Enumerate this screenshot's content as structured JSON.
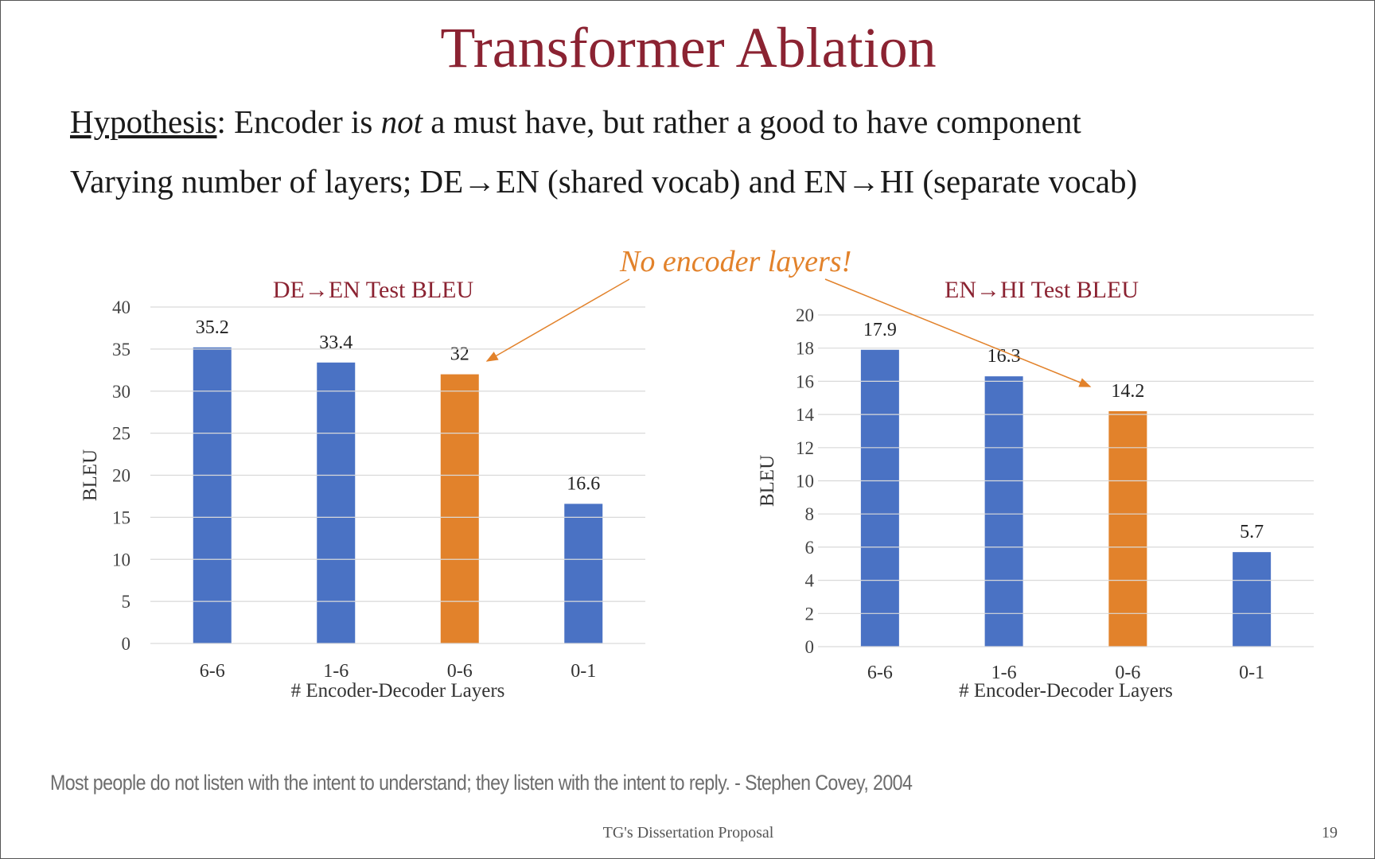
{
  "slide": {
    "title": "Transformer Ablation",
    "hypothesis_label": "Hypothesis",
    "hypothesis_text_a": ": Encoder is ",
    "hypothesis_not": "not",
    "hypothesis_text_b": " a must have, but rather a good to have component",
    "line2_a": "Varying number of  layers;  DE",
    "line2_b": "EN (shared vocab) and EN",
    "line2_c": "HI (separate vocab)",
    "callout": "No encoder layers!",
    "quote": "Most people do not listen with the intent to understand; they listen with the intent to reply. - Stephen Covey, 2004",
    "footer": "TG's Dissertation Proposal",
    "page_number": "19"
  },
  "colors": {
    "title": "#8b2332",
    "bar_default": "#4a72c4",
    "bar_highlight": "#e2822b",
    "callout": "#e2822b",
    "grid": "#d9d9d9"
  },
  "chart_data": [
    {
      "type": "bar",
      "title": "DE→EN Test BLEU",
      "xlabel": "# Encoder-Decoder Layers",
      "ylabel": "BLEU",
      "categories": [
        "6-6",
        "1-6",
        "0-6",
        "0-1"
      ],
      "values": [
        35.2,
        33.4,
        32,
        16.6
      ],
      "data_labels": [
        "35.2",
        "33.4",
        "32",
        "16.6"
      ],
      "highlight_index": 2,
      "ylim": [
        0,
        40
      ],
      "yticks": [
        0,
        5,
        10,
        15,
        20,
        25,
        30,
        35,
        40
      ],
      "grid": true
    },
    {
      "type": "bar",
      "title": "EN→HI Test BLEU",
      "xlabel": "# Encoder-Decoder Layers",
      "ylabel": "BLEU",
      "categories": [
        "6-6",
        "1-6",
        "0-6",
        "0-1"
      ],
      "values": [
        17.9,
        16.3,
        14.2,
        5.7
      ],
      "data_labels": [
        "17.9",
        "16.3",
        "14.2",
        "5.7"
      ],
      "highlight_index": 2,
      "ylim": [
        0,
        20
      ],
      "yticks": [
        0,
        2,
        4,
        6,
        8,
        10,
        12,
        14,
        16,
        18,
        20
      ],
      "grid": true
    }
  ]
}
